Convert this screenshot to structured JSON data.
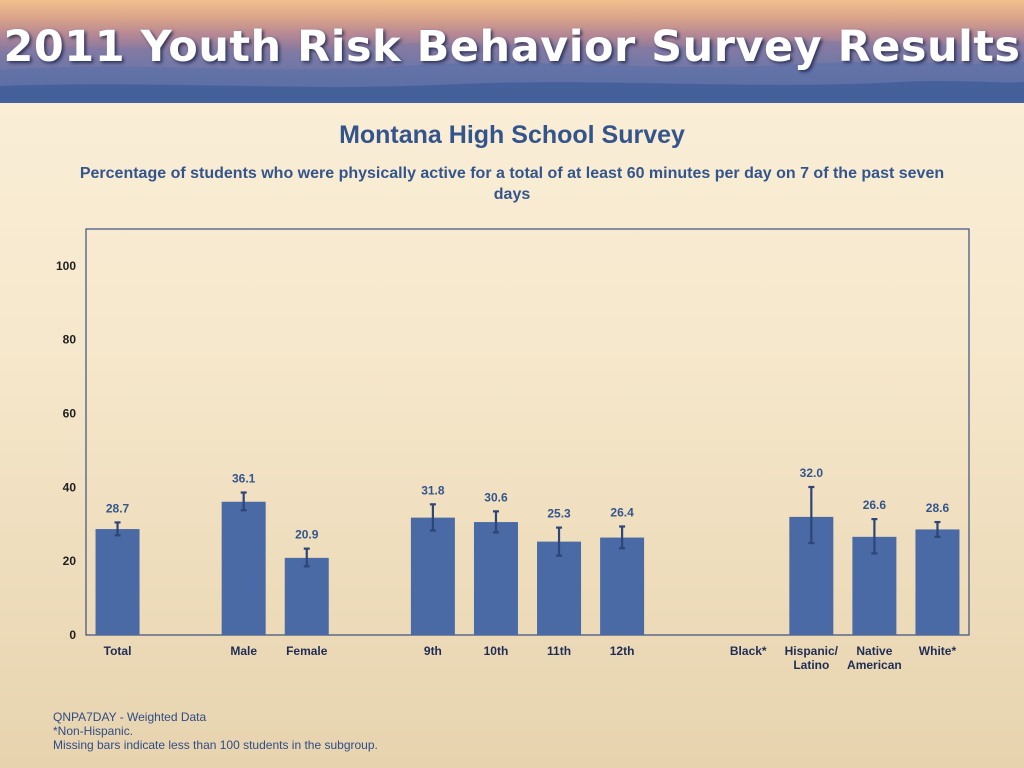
{
  "banner": {
    "title": "2011 Youth Risk Behavior Survey Results"
  },
  "chart_data": {
    "type": "bar",
    "title": "Montana High School Survey",
    "subtitle": "Percentage of students who were physically active for a total of at least 60 minutes per day on 7 of the past seven days",
    "categories": [
      [
        "Total"
      ],
      [
        ""
      ],
      [
        "Male"
      ],
      [
        "Female"
      ],
      [
        ""
      ],
      [
        "9th"
      ],
      [
        "10th"
      ],
      [
        "11th"
      ],
      [
        "12th"
      ],
      [
        ""
      ],
      [
        "Black*"
      ],
      [
        "Hispanic/",
        "Latino"
      ],
      [
        "Native",
        "American"
      ],
      [
        "White*"
      ]
    ],
    "values": [
      28.7,
      null,
      36.1,
      20.9,
      null,
      31.8,
      30.6,
      25.3,
      26.4,
      null,
      null,
      32.0,
      26.6,
      28.6
    ],
    "error_low": [
      27.0,
      null,
      33.8,
      18.6,
      null,
      28.3,
      27.8,
      21.5,
      23.5,
      null,
      null,
      24.9,
      22.1,
      26.6
    ],
    "error_high": [
      30.5,
      null,
      38.6,
      23.4,
      null,
      35.4,
      33.5,
      29.1,
      29.4,
      null,
      null,
      40.1,
      31.4,
      30.6
    ],
    "value_labels": [
      "28.7",
      "",
      "36.1",
      "20.9",
      "",
      "31.8",
      "30.6",
      "25.3",
      "26.4",
      "",
      "",
      "32.0",
      "26.6",
      "28.6"
    ],
    "yticks": [
      0,
      20,
      40,
      60,
      80,
      100
    ],
    "ylim": [
      0,
      110
    ],
    "xlabel": "",
    "ylabel": "",
    "grid": false,
    "bar_color": "#4a6aa5",
    "error_color": "#2d4577",
    "label_color": "#34558c"
  },
  "footnotes": {
    "line1": "QNPA7DAY - Weighted Data",
    "line2": "*Non-Hispanic.",
    "line3": "Missing bars indicate less than 100 students in the subgroup."
  }
}
